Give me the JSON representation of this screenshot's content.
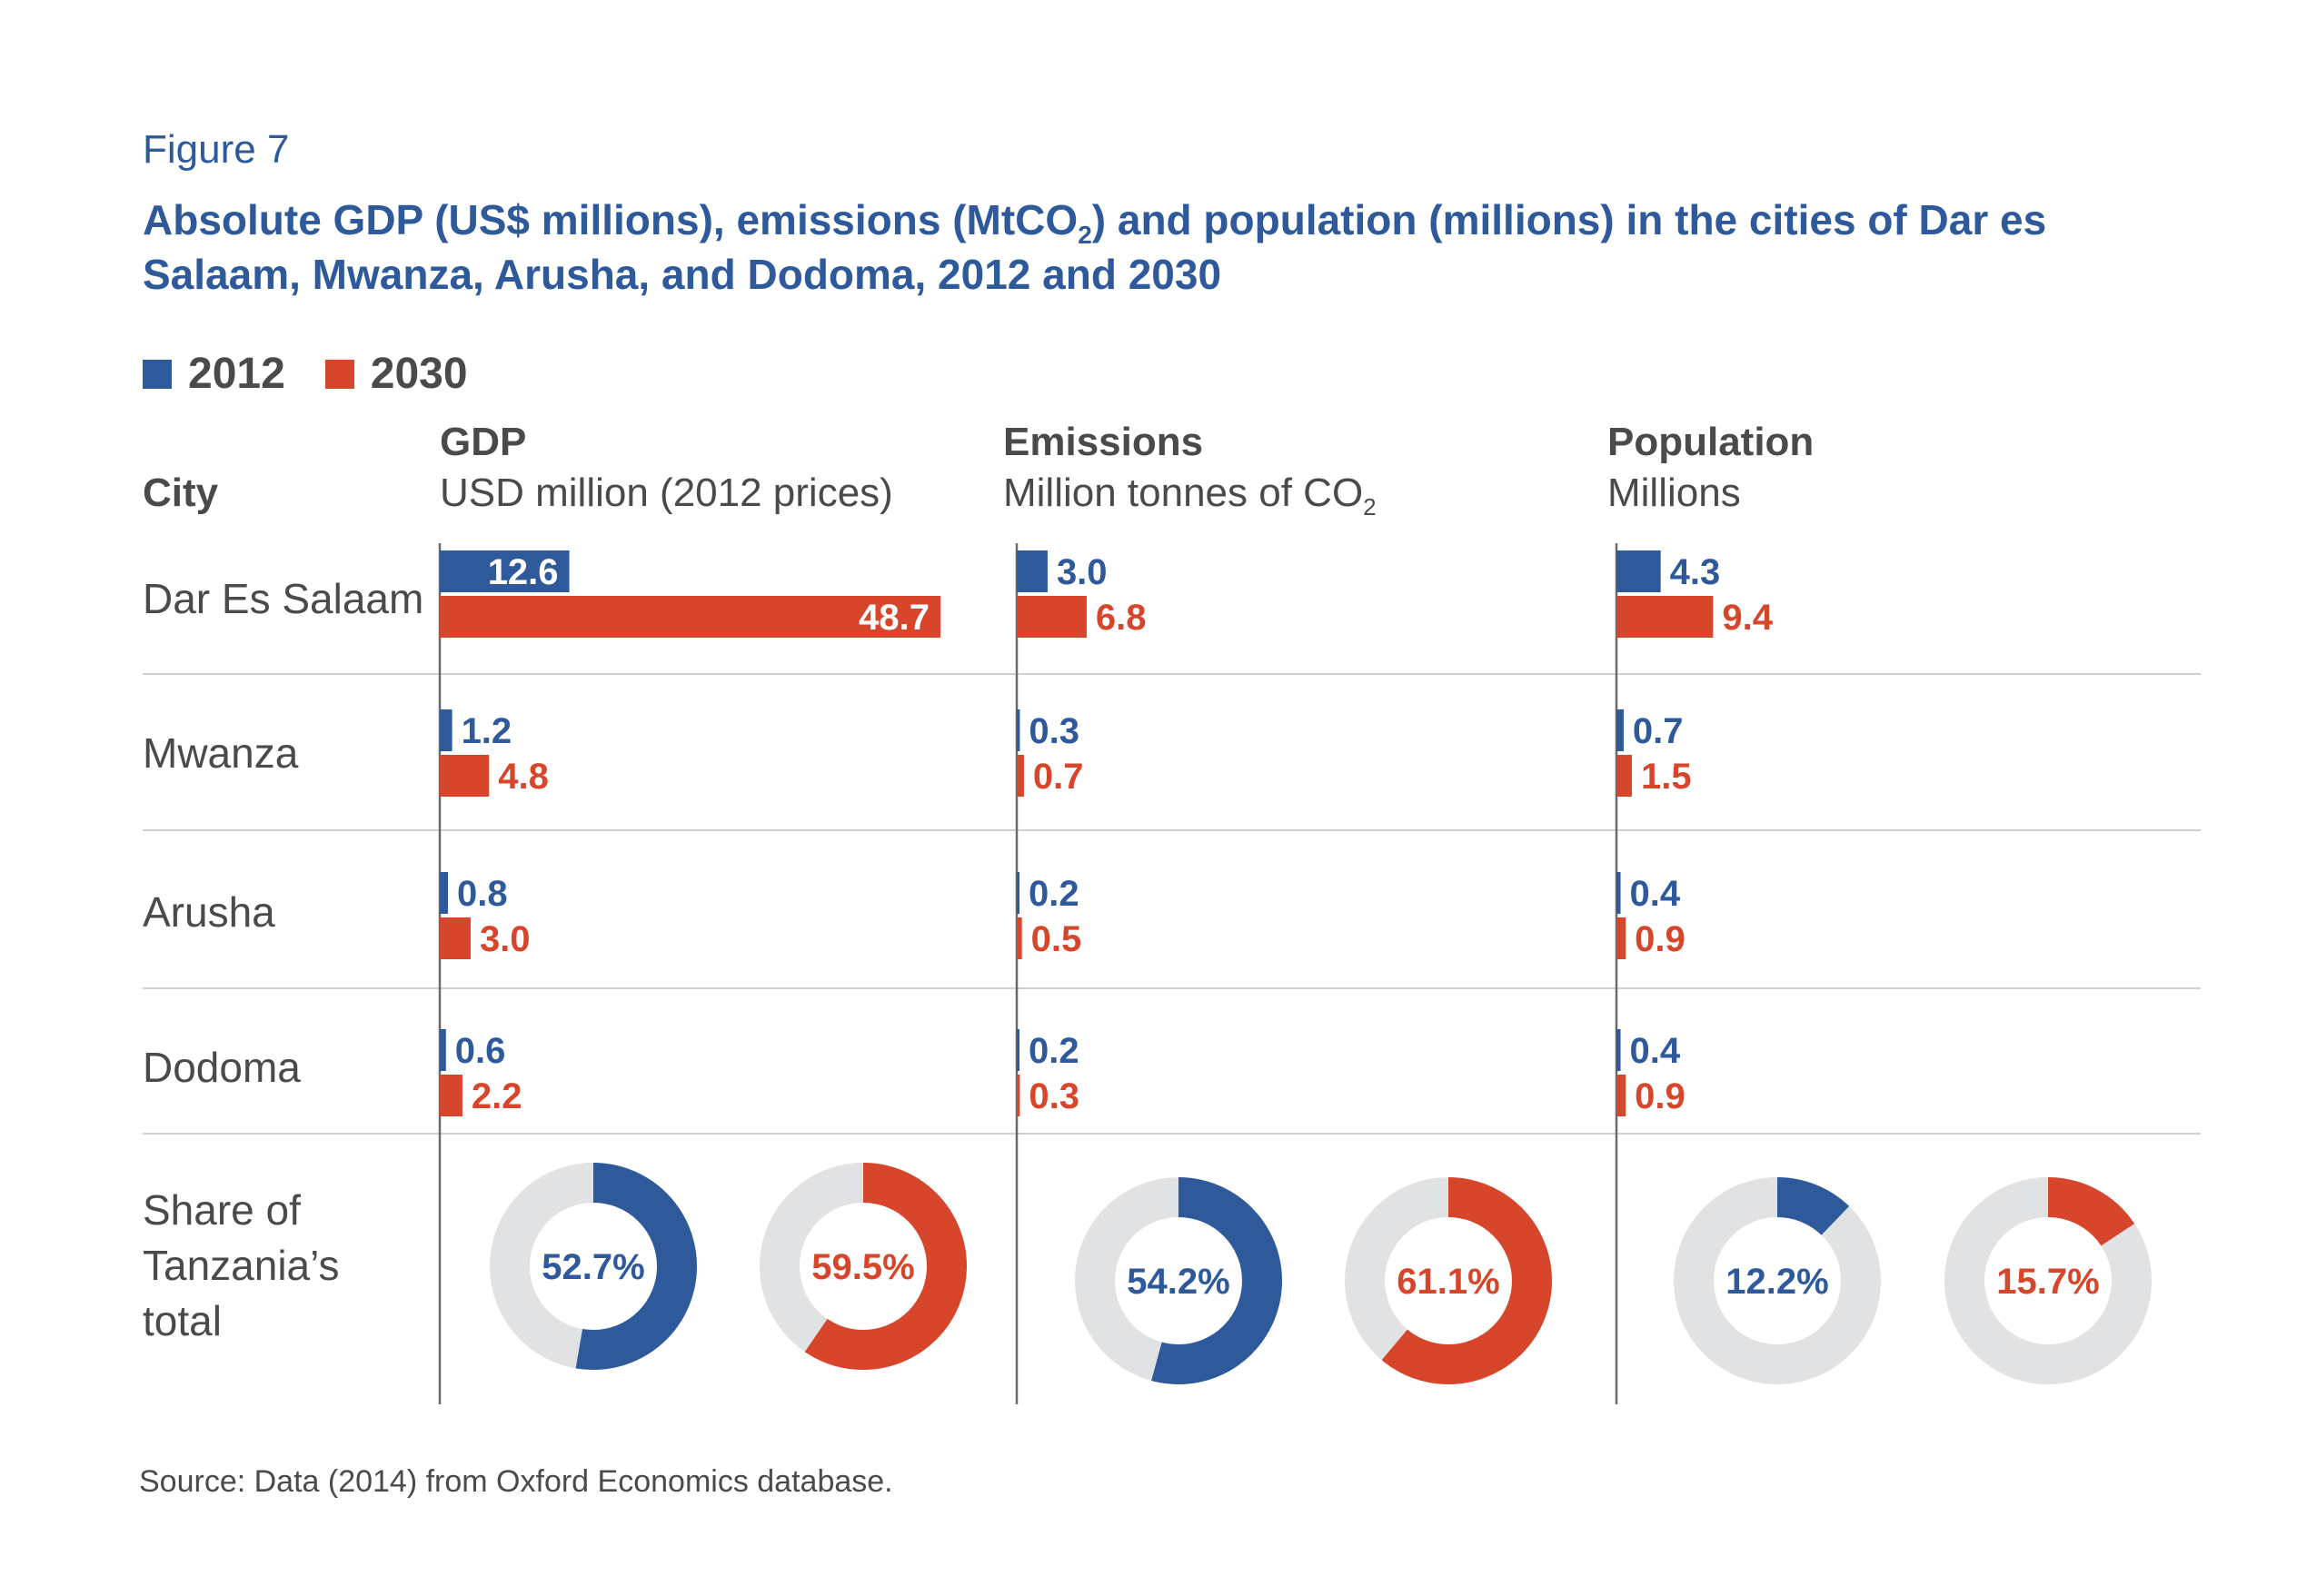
{
  "figure_label": "Figure 7",
  "title": {
    "part1": "Absolute GDP (US$ millions), emissions (MtCO",
    "sub": "2",
    "part2": ") and population (millions) in the cities of Dar es",
    "line2": "Salaam, Mwanza, Arusha, and Dodoma, 2012 and 2030"
  },
  "legend": [
    {
      "label": "2012",
      "color": "#2e5a9c"
    },
    {
      "label": "2030",
      "color": "#d7452b"
    }
  ],
  "city_header": "City",
  "cities": [
    "Dar Es Salaam",
    "Mwanza",
    "Arusha",
    "Dodoma"
  ],
  "share_label": [
    "Share of",
    "Tanzania’s",
    "total"
  ],
  "panels": [
    {
      "heading": "GDP",
      "subheading": "USD million (2012 prices)",
      "sub_suffix": ""
    },
    {
      "heading": "Emissions",
      "subheading": "Million tonnes of CO",
      "sub_suffix": "2"
    },
    {
      "heading": "Population",
      "subheading": "Millions",
      "sub_suffix": ""
    }
  ],
  "colors": {
    "y2012": "#2e5a9c",
    "y2030": "#d7452b",
    "donut_bg": "#e1e2e4",
    "grid": "#d0d0d0",
    "axis": "#6a6a6a"
  },
  "chart_data": {
    "type": "bar",
    "categories": [
      "Dar Es Salaam",
      "Mwanza",
      "Arusha",
      "Dodoma"
    ],
    "panels": [
      {
        "name": "GDP",
        "max": 48.7,
        "series": [
          {
            "name": "2012",
            "values": [
              12.6,
              1.2,
              0.8,
              0.6
            ],
            "labels": [
              "12.6",
              "1.2",
              "0.8",
              "0.6"
            ]
          },
          {
            "name": "2030",
            "values": [
              48.7,
              4.8,
              3.0,
              2.2
            ],
            "labels": [
              "48.7",
              "4.8",
              "3.0",
              "2.2"
            ]
          }
        ],
        "share": [
          {
            "name": "2012",
            "value": 52.7,
            "label": "52.7%"
          },
          {
            "name": "2030",
            "value": 59.5,
            "label": "59.5%"
          }
        ]
      },
      {
        "name": "Emissions",
        "max": 48.7,
        "series": [
          {
            "name": "2012",
            "values": [
              3.0,
              0.3,
              0.2,
              0.2
            ],
            "labels": [
              "3.0",
              "0.3",
              "0.2",
              "0.2"
            ]
          },
          {
            "name": "2030",
            "values": [
              6.8,
              0.7,
              0.5,
              0.3
            ],
            "labels": [
              "6.8",
              "0.7",
              "0.5",
              "0.3"
            ]
          }
        ],
        "share": [
          {
            "name": "2012",
            "value": 54.2,
            "label": "54.2%"
          },
          {
            "name": "2030",
            "value": 61.1,
            "label": "61.1%"
          }
        ]
      },
      {
        "name": "Population",
        "max": 48.7,
        "series": [
          {
            "name": "2012",
            "values": [
              4.3,
              0.7,
              0.4,
              0.4
            ],
            "labels": [
              "4.3",
              "0.7",
              "0.4",
              "0.4"
            ]
          },
          {
            "name": "2030",
            "values": [
              9.4,
              1.5,
              0.9,
              0.9
            ],
            "labels": [
              "9.4",
              "1.5",
              "0.9",
              "0.9"
            ]
          }
        ],
        "share": [
          {
            "name": "2012",
            "value": 12.2,
            "label": "12.2%"
          },
          {
            "name": "2030",
            "value": 15.7,
            "label": "15.7%"
          }
        ]
      }
    ]
  },
  "source": "Source: Data (2014) from Oxford Economics database."
}
